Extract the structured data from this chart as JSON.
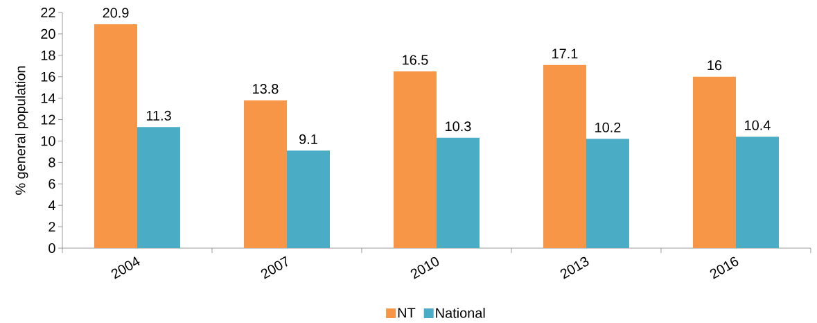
{
  "chart_data": {
    "type": "bar",
    "ylabel": "% general population",
    "categories": [
      "2004",
      "2007",
      "2010",
      "2013",
      "2016"
    ],
    "series": [
      {
        "name": "NT",
        "color": "#f79646",
        "values": [
          20.9,
          13.8,
          16.5,
          17.1,
          16
        ]
      },
      {
        "name": "National",
        "color": "#4bacc6",
        "values": [
          11.3,
          9.1,
          10.3,
          10.2,
          10.4
        ]
      }
    ],
    "ylim": [
      0,
      22
    ],
    "yticks": [
      0,
      2,
      4,
      6,
      8,
      10,
      12,
      14,
      16,
      18,
      20,
      22
    ],
    "data_labels": true,
    "legend": "bottom"
  }
}
